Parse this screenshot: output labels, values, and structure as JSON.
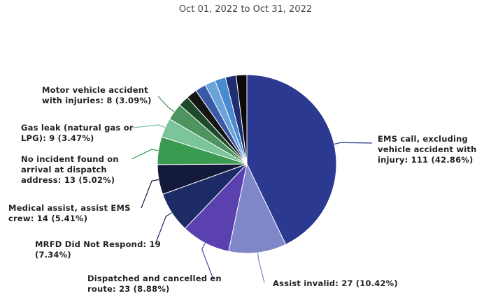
{
  "chart_data": {
    "type": "pie",
    "title": "Oct 01, 2022 to Oct 31, 2022",
    "categories": [
      "EMS call, excluding vehicle accident with injury:",
      "Assist invalid:",
      "Dispatched and cancelled en route:",
      "MRFD Did Not Respond:",
      "Medical assist, assist EMS crew:",
      "No incident found on arrival at dispatch address:",
      "Gas leak (natural gas or LPG):",
      "Motor vehicle accident with injuries:",
      null,
      null,
      null,
      null,
      null,
      null,
      null
    ],
    "values": [
      111,
      27,
      23,
      19,
      14,
      13,
      9,
      8,
      5,
      5,
      5,
      5,
      5,
      5,
      5
    ],
    "value_labels": [
      "111 (42.86%)",
      "27 (10.42%)",
      "23 (8.88%)",
      "19 (7.34%)",
      "14 (5.41%)",
      "13 (5.02%)",
      "9 (3.47%)",
      "8 (3.09%)",
      null,
      null,
      null,
      null,
      null,
      null,
      null
    ],
    "colors": [
      "#2b3990",
      "#7f87c9",
      "#5b40b0",
      "#1c2a66",
      "#141a3a",
      "#3a9a50",
      "#7cc49a",
      "#4e9460",
      "#1f4a2a",
      "#151515",
      "#3a5aa8",
      "#6aa3d8",
      "#4a8ad0",
      "#1e2e70",
      "#0a0a0a"
    ]
  }
}
